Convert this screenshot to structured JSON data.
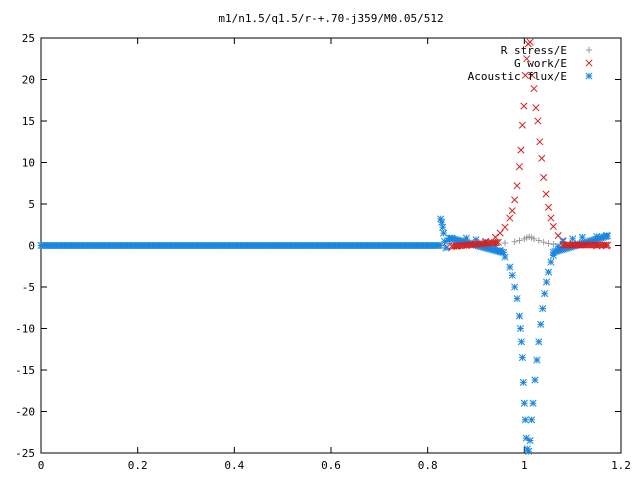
{
  "chart_data": {
    "type": "scatter",
    "title": "m1/n1.5/q1.5/r-+.70-j359/M0.05/512",
    "xlabel": "",
    "ylabel": "",
    "xlim": [
      0,
      1.2
    ],
    "ylim": [
      -25,
      25
    ],
    "xticks": [
      0,
      0.2,
      0.4,
      0.6,
      0.8,
      1,
      1.2
    ],
    "xtick_labels": [
      "0",
      "0.2",
      "0.4",
      "0.6",
      "0.8",
      "1",
      "1.2"
    ],
    "yticks": [
      -25,
      -20,
      -15,
      -10,
      -5,
      0,
      5,
      10,
      15,
      20,
      25
    ],
    "ytick_labels": [
      "-25",
      "-20",
      "-15",
      "-10",
      "-5",
      "0",
      "5",
      "10",
      "15",
      "20",
      "25"
    ],
    "grid": false,
    "legend_position": "top-right",
    "series": [
      {
        "name": "R stress/E",
        "marker": "plus",
        "color": "#999999",
        "x": [
          0.88,
          0.9,
          0.92,
          0.94,
          0.96,
          0.98,
          0.99,
          1.0,
          1.005,
          1.01,
          1.015,
          1.02,
          1.03,
          1.04,
          1.05,
          1.06,
          1.08,
          1.1,
          1.12,
          1.15,
          1.17
        ],
        "y": [
          0.05,
          0.1,
          0.15,
          0.2,
          0.3,
          0.45,
          0.6,
          0.8,
          0.95,
          1.05,
          0.95,
          0.8,
          0.6,
          0.4,
          0.25,
          0.15,
          0.08,
          0.05,
          0.03,
          0.02,
          0.02
        ]
      },
      {
        "name": "G work/E",
        "marker": "cross",
        "color": "#d62020",
        "x": [
          0.84,
          0.86,
          0.88,
          0.9,
          0.92,
          0.94,
          0.95,
          0.96,
          0.97,
          0.975,
          0.98,
          0.985,
          0.99,
          0.993,
          0.996,
          0.999,
          1.002,
          1.005,
          1.008,
          1.012,
          1.016,
          1.02,
          1.024,
          1.028,
          1.032,
          1.036,
          1.04,
          1.045,
          1.05,
          1.055,
          1.06,
          1.07,
          1.08,
          1.1,
          1.12,
          1.15,
          1.17
        ],
        "y": [
          -0.2,
          -0.1,
          0.0,
          0.2,
          0.5,
          1.0,
          1.5,
          2.2,
          3.3,
          4.2,
          5.5,
          7.2,
          9.5,
          11.5,
          14.5,
          16.8,
          20.5,
          22.5,
          24.3,
          24.5,
          20.5,
          18.9,
          16.6,
          15.0,
          12.5,
          10.5,
          8.2,
          6.2,
          4.6,
          3.3,
          2.3,
          1.2,
          0.6,
          0.2,
          0.05,
          -0.05,
          -0.05
        ]
      },
      {
        "name": "Acoustic flux/E",
        "marker": "star",
        "color": "#1a86e0",
        "x": [
          0.827,
          0.829,
          0.831,
          0.833,
          0.835,
          0.838,
          0.842,
          0.85,
          0.88,
          0.9,
          0.92,
          0.94,
          0.95,
          0.96,
          0.97,
          0.975,
          0.98,
          0.985,
          0.99,
          0.992,
          0.994,
          0.996,
          0.998,
          1.0,
          1.002,
          1.004,
          1.006,
          1.009,
          1.012,
          1.015,
          1.018,
          1.022,
          1.026,
          1.03,
          1.034,
          1.038,
          1.042,
          1.046,
          1.05,
          1.055,
          1.06,
          1.07,
          1.08,
          1.1,
          1.12,
          1.15,
          1.17
        ],
        "y": [
          3.2,
          2.8,
          2.2,
          1.5,
          0.5,
          -0.3,
          0.6,
          0.9,
          0.9,
          0.7,
          0.4,
          0.0,
          -0.6,
          -1.4,
          -2.6,
          -3.6,
          -5.0,
          -6.4,
          -8.5,
          -10.0,
          -11.6,
          -13.5,
          -16.5,
          -19.0,
          -21.0,
          -23.2,
          -24.5,
          -24.8,
          -23.5,
          -21.0,
          -19.0,
          -16.2,
          -13.8,
          -11.6,
          -9.5,
          -7.6,
          -5.8,
          -4.4,
          -3.2,
          -2.0,
          -1.2,
          -0.1,
          0.5,
          0.8,
          1.0,
          1.1,
          1.2
        ]
      }
    ]
  }
}
